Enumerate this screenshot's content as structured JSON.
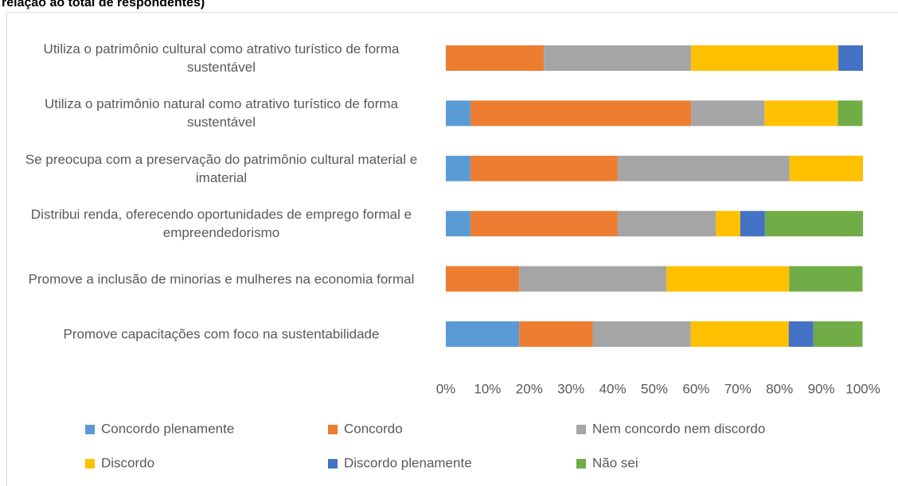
{
  "chart_data": {
    "type": "stacked-bar-horizontal",
    "title": "relação ao total de respondentes)",
    "categories": [
      "Utiliza o patrimônio cultural como atrativo turístico de forma sustentável",
      "Utiliza o patrimônio natural como atrativo turístico de forma sustentável",
      "Se preocupa com a preservação do patrimônio cultural material e imaterial",
      "Distribui renda, oferecendo oportunidades de emprego formal e empreendedorismo",
      "Promove a inclusão de minorias e mulheres na economia formal",
      "Promove capacitações com foco na sustentabilidade"
    ],
    "series": [
      {
        "name": "Concordo plenamente",
        "color": "#5b9bd5",
        "values": [
          0,
          5.9,
          5.9,
          5.9,
          0,
          17.6
        ]
      },
      {
        "name": "Concordo",
        "color": "#ed7d31",
        "values": [
          23.5,
          52.9,
          35.3,
          35.3,
          17.6,
          17.6
        ]
      },
      {
        "name": "Nem concordo nem discordo",
        "color": "#a5a5a5",
        "values": [
          35.3,
          17.6,
          41.2,
          23.5,
          35.3,
          23.5
        ]
      },
      {
        "name": "Discordo",
        "color": "#ffc000",
        "values": [
          35.3,
          17.6,
          17.6,
          5.9,
          29.4,
          23.5
        ]
      },
      {
        "name": "Discordo plenamente",
        "color": "#4472c4",
        "values": [
          5.9,
          0,
          0,
          5.9,
          0,
          5.9
        ]
      },
      {
        "name": "Não sei",
        "color": "#70ad47",
        "values": [
          0,
          5.9,
          0,
          23.5,
          17.6,
          11.8
        ]
      }
    ],
    "xlim": [
      0,
      100
    ],
    "xticks": [
      {
        "value": 0,
        "label": "0%"
      },
      {
        "value": 10,
        "label": "10%"
      },
      {
        "value": 20,
        "label": "20%"
      },
      {
        "value": 30,
        "label": "30%"
      },
      {
        "value": 40,
        "label": "40%"
      },
      {
        "value": 50,
        "label": "50%"
      },
      {
        "value": 60,
        "label": "60%"
      },
      {
        "value": 70,
        "label": "70%"
      },
      {
        "value": 80,
        "label": "80%"
      },
      {
        "value": 90,
        "label": "90%"
      },
      {
        "value": 100,
        "label": "100%"
      }
    ],
    "legend": "bottom"
  }
}
